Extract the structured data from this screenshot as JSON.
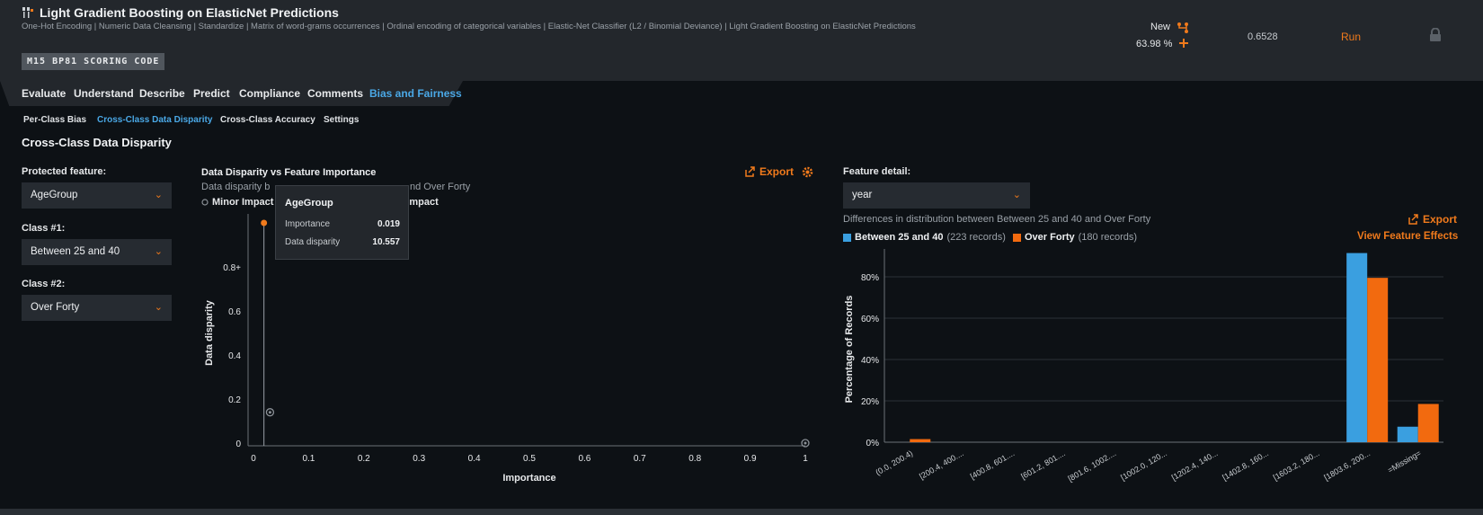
{
  "header": {
    "title": "Light Gradient Boosting on ElasticNet Predictions",
    "subtitle": "One-Hot Encoding | Numeric Data Cleansing | Standardize | Matrix of word-grams occurrences | Ordinal encoding of categorical variables | Elastic-Net Classifier (L2 / Binomial Deviance) | Light Gradient Boosting on ElasticNet Predictions",
    "badge": "M15  BP81  SCORING CODE",
    "new_label": "New",
    "percent": "63.98 %",
    "score": "0.6528",
    "run_label": "Run"
  },
  "nav": {
    "tabs": [
      "Evaluate",
      "Understand",
      "Describe",
      "Predict",
      "Compliance",
      "Comments",
      "Bias and Fairness"
    ],
    "subtabs": [
      "Per-Class Bias",
      "Cross-Class Data Disparity",
      "Cross-Class Accuracy",
      "Settings"
    ]
  },
  "section_title": "Cross-Class Data Disparity",
  "filters": {
    "protected_label": "Protected feature:",
    "protected_value": "AgeGroup",
    "class1_label": "Class #1:",
    "class1_value": "Between 25 and 40",
    "class2_label": "Class #2:",
    "class2_value": "Over Forty"
  },
  "scatter": {
    "title": "Data Disparity vs Feature Importance",
    "desc_left": "Data disparity b",
    "desc_right": "nd Over Forty",
    "legend_minor": "Minor Impact",
    "legend_major": "r Impact",
    "export_label": "Export",
    "tooltip": {
      "name": "AgeGroup",
      "importance_label": "Importance",
      "importance_value": "0.019",
      "disparity_label": "Data disparity",
      "disparity_value": "10.557"
    }
  },
  "feature": {
    "label": "Feature detail:",
    "value": "year",
    "desc": "Differences in distribution between Between 25 and 40 and Over Forty",
    "export_label": "Export",
    "effects_label": "View Feature Effects",
    "legend": [
      {
        "name": "Between 25 and 40",
        "count": "(223 records)",
        "color": "#3a9fe0"
      },
      {
        "name": "Over Forty",
        "count": "(180 records)",
        "color": "#f26a0f"
      }
    ]
  },
  "chart_data": [
    {
      "type": "scatter",
      "title": "Data Disparity vs Feature Importance",
      "xlabel": "Importance",
      "ylabel": "Data disparity",
      "x_ticks": [
        "0",
        "0.1",
        "0.2",
        "0.3",
        "0.4",
        "0.5",
        "0.6",
        "0.7",
        "0.8",
        "0.9",
        "1"
      ],
      "y_ticks": [
        "0",
        "0.2",
        "0.4",
        "0.6",
        "0.8+"
      ],
      "xlim": [
        0,
        1
      ],
      "ylim": [
        0,
        1
      ],
      "points": [
        {
          "name": "AgeGroup",
          "x": 0.019,
          "y": 1.0,
          "impact": "major",
          "highlighted": true
        },
        {
          "x": 0.03,
          "y": 0.14,
          "impact": "minor"
        },
        {
          "x": 1.0,
          "y": 0.0,
          "impact": "minor"
        }
      ]
    },
    {
      "type": "bar",
      "ylabel": "Percentage of Records",
      "categories": [
        "(0.0, 200.4)",
        "[200.4, 400....",
        "[400.8, 601....",
        "[601.2, 801....",
        "[801.6, 1002....",
        "[1002.0, 120...",
        "[1202.4, 140...",
        "[1402.8, 160...",
        "[1603.2, 180...",
        "[1803.6, 200...",
        "=Missing="
      ],
      "y_ticks": [
        "0%",
        "20%",
        "40%",
        "60%",
        "80%"
      ],
      "ylim": [
        0,
        90
      ],
      "series": [
        {
          "name": "Between 25 and 40",
          "values": [
            0,
            0,
            0,
            0,
            0,
            0,
            0,
            0,
            0,
            91.5,
            7.5
          ]
        },
        {
          "name": "Over Forty",
          "values": [
            1.5,
            0,
            0,
            0,
            0,
            0,
            0,
            0,
            0,
            79.5,
            18.5
          ]
        }
      ]
    }
  ]
}
